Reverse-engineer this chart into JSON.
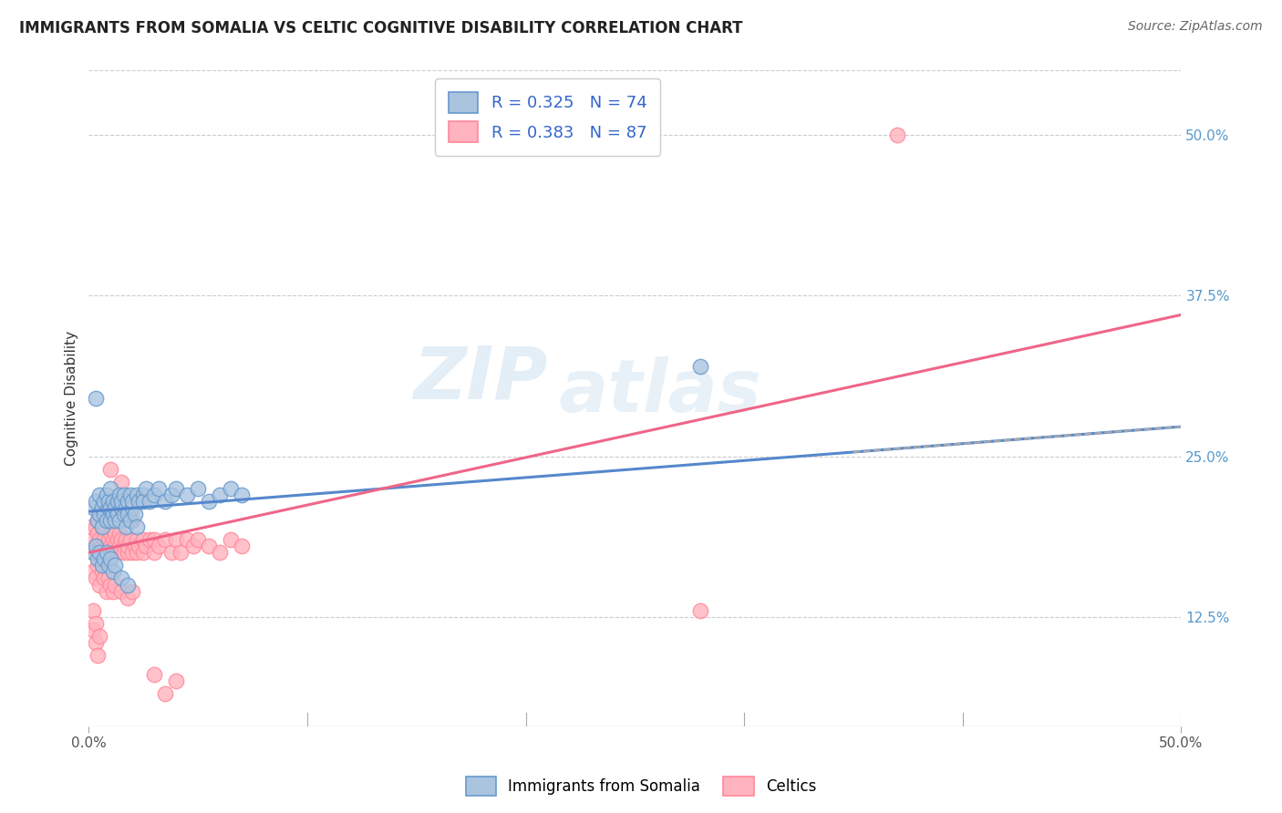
{
  "title": "IMMIGRANTS FROM SOMALIA VS CELTIC COGNITIVE DISABILITY CORRELATION CHART",
  "source": "Source: ZipAtlas.com",
  "ylabel": "Cognitive Disability",
  "xlim": [
    0.0,
    0.5
  ],
  "ylim": [
    0.04,
    0.55
  ],
  "ytick_labels_right": [
    "12.5%",
    "25.0%",
    "37.5%",
    "50.0%"
  ],
  "ytick_vals_right": [
    0.125,
    0.25,
    0.375,
    0.5
  ],
  "xtick_vals": [
    0.0,
    0.5
  ],
  "xtick_labels": [
    "0.0%",
    "50.0%"
  ],
  "color_somalia": "#6699cc",
  "color_celtics": "#ff8899",
  "color_somalia_fill": "#aac4e0",
  "color_celtics_fill": "#ffb3bf",
  "color_somalia_line": "#5588cc",
  "color_celtics_line": "#ee6688",
  "watermark_line1": "ZIP",
  "watermark_line2": "atlas",
  "background_color": "#ffffff",
  "grid_color": "#cccccc",
  "somalia_scatter": [
    [
      0.002,
      0.21
    ],
    [
      0.003,
      0.215
    ],
    [
      0.004,
      0.2
    ],
    [
      0.005,
      0.205
    ],
    [
      0.005,
      0.22
    ],
    [
      0.006,
      0.21
    ],
    [
      0.006,
      0.195
    ],
    [
      0.007,
      0.215
    ],
    [
      0.007,
      0.205
    ],
    [
      0.008,
      0.2
    ],
    [
      0.008,
      0.22
    ],
    [
      0.009,
      0.21
    ],
    [
      0.009,
      0.215
    ],
    [
      0.01,
      0.2
    ],
    [
      0.01,
      0.21
    ],
    [
      0.01,
      0.225
    ],
    [
      0.011,
      0.205
    ],
    [
      0.011,
      0.215
    ],
    [
      0.012,
      0.2
    ],
    [
      0.012,
      0.21
    ],
    [
      0.013,
      0.215
    ],
    [
      0.013,
      0.205
    ],
    [
      0.014,
      0.22
    ],
    [
      0.014,
      0.2
    ],
    [
      0.015,
      0.21
    ],
    [
      0.015,
      0.215
    ],
    [
      0.016,
      0.205
    ],
    [
      0.016,
      0.22
    ],
    [
      0.017,
      0.21
    ],
    [
      0.017,
      0.195
    ],
    [
      0.018,
      0.215
    ],
    [
      0.018,
      0.205
    ],
    [
      0.019,
      0.22
    ],
    [
      0.019,
      0.2
    ],
    [
      0.02,
      0.21
    ],
    [
      0.02,
      0.215
    ],
    [
      0.021,
      0.205
    ],
    [
      0.022,
      0.22
    ],
    [
      0.022,
      0.195
    ],
    [
      0.023,
      0.215
    ],
    [
      0.025,
      0.22
    ],
    [
      0.025,
      0.215
    ],
    [
      0.026,
      0.225
    ],
    [
      0.028,
      0.215
    ],
    [
      0.03,
      0.22
    ],
    [
      0.032,
      0.225
    ],
    [
      0.035,
      0.215
    ],
    [
      0.038,
      0.22
    ],
    [
      0.04,
      0.225
    ],
    [
      0.045,
      0.22
    ],
    [
      0.05,
      0.225
    ],
    [
      0.055,
      0.215
    ],
    [
      0.06,
      0.22
    ],
    [
      0.065,
      0.225
    ],
    [
      0.07,
      0.22
    ],
    [
      0.003,
      0.295
    ],
    [
      0.002,
      0.175
    ],
    [
      0.003,
      0.18
    ],
    [
      0.004,
      0.17
    ],
    [
      0.005,
      0.175
    ],
    [
      0.006,
      0.165
    ],
    [
      0.007,
      0.17
    ],
    [
      0.008,
      0.175
    ],
    [
      0.009,
      0.165
    ],
    [
      0.01,
      0.17
    ],
    [
      0.011,
      0.16
    ],
    [
      0.012,
      0.165
    ],
    [
      0.015,
      0.155
    ],
    [
      0.018,
      0.15
    ],
    [
      0.28,
      0.32
    ]
  ],
  "celtics_scatter": [
    [
      0.001,
      0.195
    ],
    [
      0.002,
      0.185
    ],
    [
      0.002,
      0.175
    ],
    [
      0.003,
      0.195
    ],
    [
      0.003,
      0.18
    ],
    [
      0.004,
      0.19
    ],
    [
      0.004,
      0.2
    ],
    [
      0.005,
      0.185
    ],
    [
      0.005,
      0.175
    ],
    [
      0.006,
      0.195
    ],
    [
      0.006,
      0.18
    ],
    [
      0.007,
      0.185
    ],
    [
      0.007,
      0.195
    ],
    [
      0.008,
      0.18
    ],
    [
      0.008,
      0.17
    ],
    [
      0.009,
      0.185
    ],
    [
      0.009,
      0.175
    ],
    [
      0.01,
      0.19
    ],
    [
      0.01,
      0.18
    ],
    [
      0.01,
      0.24
    ],
    [
      0.011,
      0.185
    ],
    [
      0.011,
      0.175
    ],
    [
      0.012,
      0.19
    ],
    [
      0.012,
      0.18
    ],
    [
      0.013,
      0.185
    ],
    [
      0.013,
      0.175
    ],
    [
      0.014,
      0.19
    ],
    [
      0.014,
      0.18
    ],
    [
      0.015,
      0.185
    ],
    [
      0.015,
      0.23
    ],
    [
      0.016,
      0.18
    ],
    [
      0.016,
      0.175
    ],
    [
      0.017,
      0.185
    ],
    [
      0.018,
      0.175
    ],
    [
      0.018,
      0.18
    ],
    [
      0.019,
      0.185
    ],
    [
      0.02,
      0.175
    ],
    [
      0.02,
      0.2
    ],
    [
      0.021,
      0.18
    ],
    [
      0.022,
      0.185
    ],
    [
      0.022,
      0.175
    ],
    [
      0.023,
      0.18
    ],
    [
      0.025,
      0.185
    ],
    [
      0.025,
      0.175
    ],
    [
      0.026,
      0.18
    ],
    [
      0.028,
      0.185
    ],
    [
      0.03,
      0.175
    ],
    [
      0.03,
      0.185
    ],
    [
      0.032,
      0.18
    ],
    [
      0.035,
      0.185
    ],
    [
      0.038,
      0.175
    ],
    [
      0.04,
      0.185
    ],
    [
      0.042,
      0.175
    ],
    [
      0.045,
      0.185
    ],
    [
      0.048,
      0.18
    ],
    [
      0.05,
      0.185
    ],
    [
      0.055,
      0.18
    ],
    [
      0.06,
      0.175
    ],
    [
      0.065,
      0.185
    ],
    [
      0.07,
      0.18
    ],
    [
      0.002,
      0.16
    ],
    [
      0.003,
      0.155
    ],
    [
      0.004,
      0.165
    ],
    [
      0.005,
      0.15
    ],
    [
      0.006,
      0.16
    ],
    [
      0.007,
      0.155
    ],
    [
      0.008,
      0.145
    ],
    [
      0.009,
      0.155
    ],
    [
      0.01,
      0.15
    ],
    [
      0.011,
      0.145
    ],
    [
      0.012,
      0.15
    ],
    [
      0.015,
      0.145
    ],
    [
      0.018,
      0.14
    ],
    [
      0.02,
      0.145
    ],
    [
      0.002,
      0.115
    ],
    [
      0.003,
      0.105
    ],
    [
      0.004,
      0.095
    ],
    [
      0.03,
      0.08
    ],
    [
      0.035,
      0.065
    ],
    [
      0.04,
      0.075
    ],
    [
      0.28,
      0.13
    ],
    [
      0.37,
      0.5
    ],
    [
      0.002,
      0.13
    ],
    [
      0.003,
      0.12
    ],
    [
      0.005,
      0.11
    ]
  ],
  "somalia_line_x": [
    0.0,
    0.5
  ],
  "somalia_line_y": [
    0.207,
    0.273
  ],
  "celtics_line_x": [
    0.0,
    0.5
  ],
  "celtics_line_y": [
    0.175,
    0.36
  ]
}
